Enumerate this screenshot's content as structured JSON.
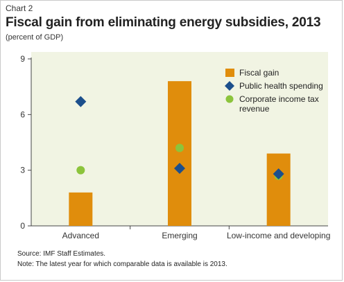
{
  "header": {
    "chart_number": "Chart 2",
    "title": "Fiscal gain from eliminating energy subsidies, 2013",
    "subtitle": "(percent of GDP)"
  },
  "footer": {
    "source": "Source: IMF Staff Estimates.",
    "note": "Note: The latest year for which comparable data is available is 2013."
  },
  "colors": {
    "fiscal_gain": "#e08d0c",
    "public_health": "#1c4f8c",
    "corporate_tax": "#8cc43c",
    "plot_background": "#f1f4e3",
    "axis": "#444444"
  },
  "chart_data": {
    "type": "bar",
    "categories": [
      "Advanced",
      "Emerging",
      "Low-income and developing"
    ],
    "ylim": [
      0,
      9
    ],
    "yticks": [
      0,
      3,
      6,
      9
    ],
    "ytick_labels": [
      "0",
      "3",
      "6",
      "9"
    ],
    "grid": false,
    "legend_position": "top-right",
    "series": [
      {
        "name": "Fiscal gain",
        "mark": "bar",
        "values": [
          1.8,
          7.8,
          3.9
        ]
      },
      {
        "name": "Public health spending",
        "mark": "diamond",
        "values": [
          6.7,
          3.1,
          2.8
        ]
      },
      {
        "name": "Corporate income tax revenue",
        "mark": "circle",
        "values": [
          3.0,
          4.2,
          2.7
        ]
      }
    ],
    "legend": [
      {
        "series": 0,
        "lines": [
          "Fiscal gain"
        ]
      },
      {
        "series": 1,
        "lines": [
          "Public health spending"
        ]
      },
      {
        "series": 2,
        "lines": [
          "Corporate income tax",
          "revenue"
        ]
      }
    ]
  }
}
